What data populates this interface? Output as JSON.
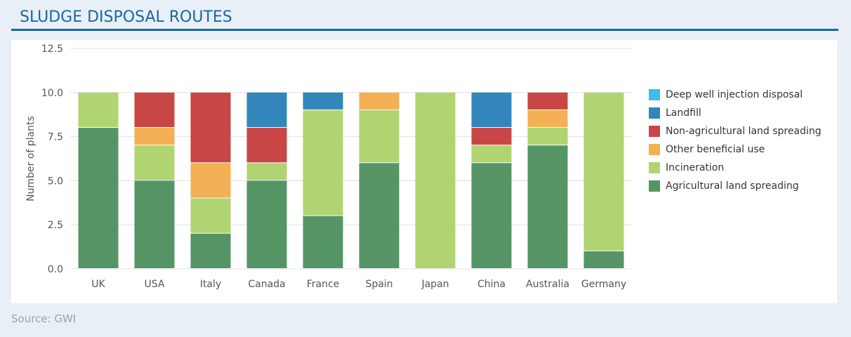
{
  "title": "SLUDGE DISPOSAL ROUTES",
  "source": "Source: GWI",
  "chart_data": {
    "type": "bar",
    "stacked": true,
    "ylabel": "Number of plants",
    "xlabel": "",
    "ylim": [
      0,
      12.5
    ],
    "yticks": [
      "0.0",
      "2.5",
      "5.0",
      "7.5",
      "10.0",
      "12.5"
    ],
    "grid": true,
    "legend_position": "right",
    "categories": [
      "UK",
      "USA",
      "Italy",
      "Canada",
      "France",
      "Spain",
      "Japan",
      "China",
      "Australia",
      "Germany"
    ],
    "series": [
      {
        "name": "Agricultural land spreading",
        "color": "#559565",
        "values": [
          8,
          5,
          2,
          5,
          3,
          6,
          0,
          6,
          7,
          1
        ]
      },
      {
        "name": "Incineration",
        "color": "#b0d472",
        "values": [
          2,
          2,
          2,
          1,
          6,
          3,
          10,
          1,
          1,
          9
        ]
      },
      {
        "name": "Other beneficial use",
        "color": "#f3b055",
        "values": [
          0,
          1,
          2,
          0,
          0,
          1,
          0,
          0,
          1,
          0
        ]
      },
      {
        "name": "Non-agricultural land spreading",
        "color": "#c94646",
        "values": [
          0,
          2,
          4,
          2,
          0,
          0,
          0,
          1,
          1,
          0
        ]
      },
      {
        "name": "Landfill",
        "color": "#3386ba",
        "values": [
          0,
          0,
          0,
          2,
          1,
          0,
          0,
          2,
          0,
          0
        ]
      },
      {
        "name": "Deep well injection disposal",
        "color": "#3bbdee",
        "values": [
          0,
          0,
          0,
          0,
          0,
          0,
          0,
          0,
          0,
          0
        ]
      }
    ]
  }
}
